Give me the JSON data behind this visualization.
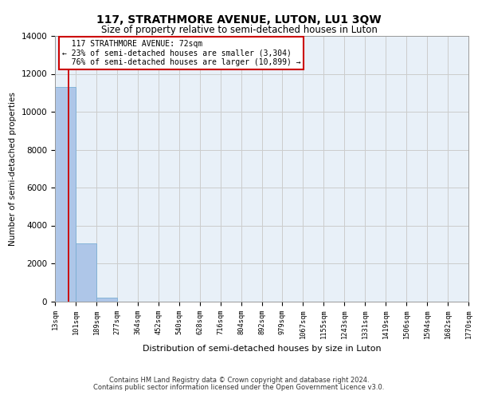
{
  "title": "117, STRATHMORE AVENUE, LUTON, LU1 3QW",
  "subtitle": "Size of property relative to semi-detached houses in Luton",
  "xlabel": "Distribution of semi-detached houses by size in Luton",
  "ylabel": "Number of semi-detached properties",
  "property_size_sqm": 72,
  "property_label": "117 STRATHMORE AVENUE: 72sqm",
  "pct_smaller": 23,
  "n_smaller": 3304,
  "pct_larger": 76,
  "n_larger": 10899,
  "bin_edges": [
    13,
    101,
    189,
    277,
    364,
    452,
    540,
    628,
    716,
    804,
    892,
    979,
    1067,
    1155,
    1243,
    1331,
    1419,
    1506,
    1594,
    1682,
    1770
  ],
  "bin_labels": [
    "13sqm",
    "101sqm",
    "189sqm",
    "277sqm",
    "364sqm",
    "452sqm",
    "540sqm",
    "628sqm",
    "716sqm",
    "804sqm",
    "892sqm",
    "979sqm",
    "1067sqm",
    "1155sqm",
    "1243sqm",
    "1331sqm",
    "1419sqm",
    "1506sqm",
    "1594sqm",
    "1682sqm",
    "1770sqm"
  ],
  "bar_heights": [
    11300,
    3050,
    200,
    0,
    0,
    0,
    0,
    0,
    0,
    0,
    0,
    0,
    0,
    0,
    0,
    0,
    0,
    0,
    0,
    0
  ],
  "bar_color": "#aec6e8",
  "bar_edgecolor": "#7aaed4",
  "grid_color": "#cccccc",
  "annotation_box_color": "#cc0000",
  "vline_color": "#cc0000",
  "ylim": [
    0,
    14000
  ],
  "yticks": [
    0,
    2000,
    4000,
    6000,
    8000,
    10000,
    12000,
    14000
  ],
  "footer_line1": "Contains HM Land Registry data © Crown copyright and database right 2024.",
  "footer_line2": "Contains public sector information licensed under the Open Government Licence v3.0.",
  "bg_color": "#e8f0f8",
  "plot_bg_color": "#e8f0f8"
}
